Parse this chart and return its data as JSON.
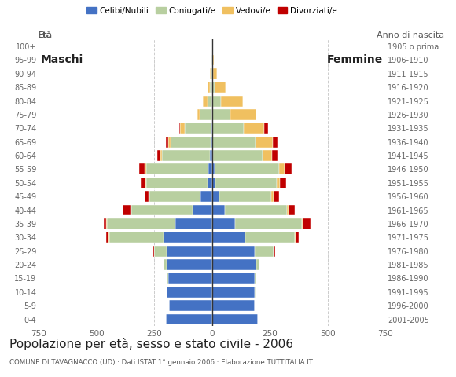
{
  "age_groups": [
    "0-4",
    "5-9",
    "10-14",
    "15-19",
    "20-24",
    "25-29",
    "30-34",
    "35-39",
    "40-44",
    "45-49",
    "50-54",
    "55-59",
    "60-64",
    "65-69",
    "70-74",
    "75-79",
    "80-84",
    "85-89",
    "90-94",
    "95-99",
    "100+"
  ],
  "birth_years": [
    "2001-2005",
    "1996-2000",
    "1991-1995",
    "1986-1990",
    "1981-1985",
    "1976-1980",
    "1971-1975",
    "1966-1970",
    "1961-1965",
    "1956-1960",
    "1951-1955",
    "1946-1950",
    "1941-1945",
    "1936-1940",
    "1931-1935",
    "1926-1930",
    "1921-1925",
    "1916-1920",
    "1911-1915",
    "1906-1910",
    "1905 o prima"
  ],
  "males": {
    "celibi": [
      200,
      185,
      195,
      190,
      195,
      195,
      210,
      160,
      85,
      50,
      20,
      15,
      8,
      5,
      2,
      0,
      0,
      0,
      0,
      0,
      0
    ],
    "coniugati": [
      0,
      0,
      2,
      5,
      15,
      55,
      235,
      295,
      265,
      220,
      265,
      270,
      210,
      175,
      115,
      55,
      20,
      10,
      5,
      2,
      0
    ],
    "vedovi": [
      0,
      0,
      0,
      0,
      0,
      2,
      2,
      2,
      2,
      3,
      3,
      5,
      5,
      10,
      20,
      10,
      20,
      10,
      5,
      2,
      0
    ],
    "divorziati": [
      0,
      0,
      0,
      0,
      0,
      5,
      10,
      10,
      35,
      20,
      20,
      25,
      15,
      10,
      5,
      2,
      0,
      0,
      0,
      0,
      0
    ]
  },
  "females": {
    "nubili": [
      200,
      185,
      185,
      185,
      190,
      185,
      145,
      100,
      55,
      30,
      15,
      10,
      5,
      2,
      2,
      0,
      0,
      0,
      0,
      0,
      0
    ],
    "coniugate": [
      0,
      0,
      2,
      5,
      15,
      80,
      215,
      290,
      270,
      225,
      265,
      280,
      215,
      185,
      135,
      80,
      40,
      10,
      5,
      2,
      0
    ],
    "vedove": [
      0,
      0,
      0,
      0,
      0,
      2,
      2,
      2,
      5,
      10,
      15,
      25,
      40,
      75,
      90,
      110,
      95,
      50,
      15,
      5,
      0
    ],
    "divorziate": [
      0,
      0,
      0,
      0,
      0,
      5,
      15,
      35,
      30,
      25,
      25,
      30,
      25,
      20,
      15,
      2,
      0,
      0,
      0,
      0,
      0
    ]
  },
  "colors": {
    "celibi": "#4472c4",
    "coniugati": "#b8cfa0",
    "vedovi": "#f0c060",
    "divorziati": "#c00000"
  },
  "xlim": 750,
  "title": "Popolazione per età, sesso e stato civile - 2006",
  "subtitle": "COMUNE DI TAVAGNACCO (UD) · Dati ISTAT 1° gennaio 2006 · Elaborazione TUTTITALIA.IT",
  "legend_labels": [
    "Celibi/Nubili",
    "Coniugati/e",
    "Vedovi/e",
    "Divorziati/e"
  ],
  "xlabel_left": "Maschi",
  "xlabel_right": "Femmine",
  "ylabel_left": "Età",
  "ylabel_right": "Anno di nascita",
  "bg_color": "#ffffff",
  "grid_color": "#cccccc"
}
